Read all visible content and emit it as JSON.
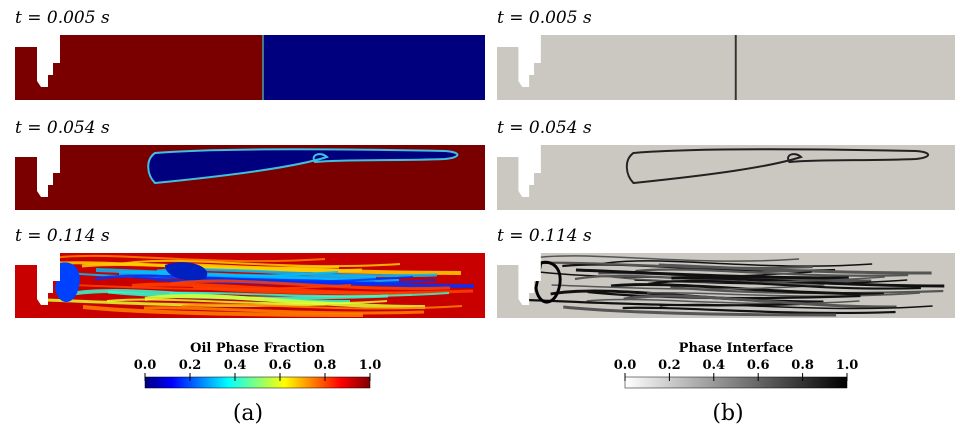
{
  "panels": [
    {
      "label": "(a)",
      "snapshots": [
        {
          "time": "t = 0.005 s"
        },
        {
          "time": "t = 0.054 s"
        },
        {
          "time": "t = 0.114 s"
        }
      ],
      "colorbar": {
        "title": "Oil Phase Fraction",
        "ticks": [
          "0.0",
          "0.2",
          "0.4",
          "0.6",
          "0.8",
          "1.0"
        ]
      }
    },
    {
      "label": "(b)",
      "snapshots": [
        {
          "time": "t = 0.005 s"
        },
        {
          "time": "t = 0.054 s"
        },
        {
          "time": "t = 0.114 s"
        }
      ],
      "colorbar": {
        "title": "Phase Interface",
        "ticks": [
          "0.0",
          "0.2",
          "0.4",
          "0.6",
          "0.8",
          "1.0"
        ]
      }
    }
  ]
}
